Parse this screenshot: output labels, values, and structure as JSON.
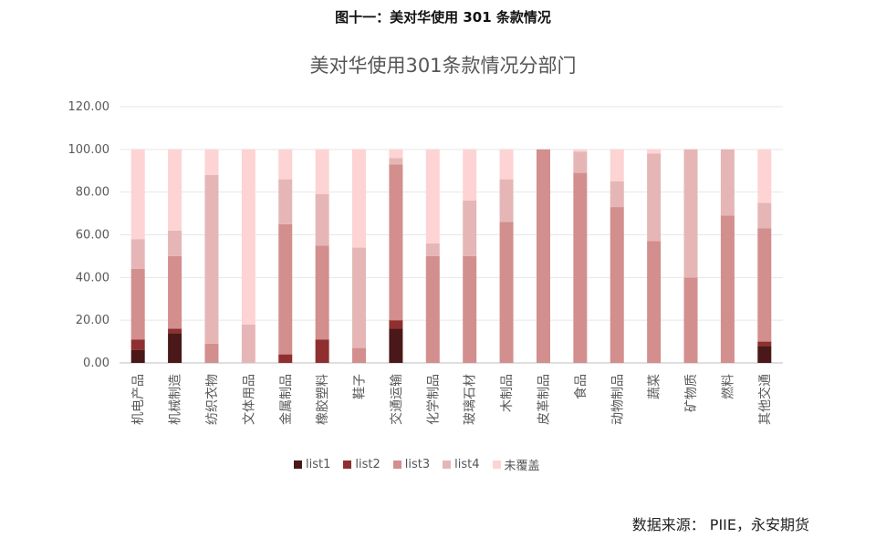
{
  "figure_caption": "图十一：美对华使用 301 条款情况",
  "source": "数据来源： PIIE，永安期货",
  "colors": {
    "list1": "#4a1818",
    "list2": "#8f2f2f",
    "list3": "#d38e8e",
    "list4": "#e6b6b6",
    "uncovered": "#fdd3d3",
    "grid": "#e6e6e6",
    "axis_text": "#595959"
  },
  "chart_data": {
    "type": "bar",
    "stacked": true,
    "title": "美对华使用301条款情况分部门",
    "xlabel": "",
    "ylabel": "",
    "ylim": [
      0,
      120
    ],
    "yticks": [
      "0.00",
      "20.00",
      "40.00",
      "60.00",
      "80.00",
      "100.00",
      "120.00"
    ],
    "grid": true,
    "legend_position": "bottom",
    "categories": [
      "机电产品",
      "机械制造",
      "纺织衣物",
      "文体用品",
      "金属制品",
      "橡胶塑料",
      "鞋子",
      "交通运输",
      "化学制品",
      "玻璃石材",
      "木制品",
      "皮革制品",
      "食品",
      "动物制品",
      "蔬菜",
      "矿物质",
      "燃料",
      "其他交通"
    ],
    "series": [
      {
        "name": "list1",
        "values": [
          6,
          14,
          0,
          0,
          0,
          0,
          0,
          16,
          0,
          0,
          0,
          0,
          0,
          0,
          0,
          0,
          0,
          8
        ]
      },
      {
        "name": "list2",
        "values": [
          5,
          2,
          0,
          0,
          4,
          11,
          0,
          4,
          0,
          0,
          0,
          0,
          0,
          0,
          0,
          0,
          0,
          2
        ]
      },
      {
        "name": "list3",
        "values": [
          33,
          34,
          9,
          0,
          61,
          44,
          7,
          73,
          50,
          50,
          66,
          100,
          89,
          73,
          57,
          40,
          69,
          53
        ]
      },
      {
        "name": "list4",
        "values": [
          14,
          12,
          79,
          18,
          21,
          24,
          47,
          3,
          6,
          26,
          20,
          0,
          10,
          12,
          41,
          60,
          31,
          12
        ]
      },
      {
        "name": "未覆盖",
        "values": [
          42,
          38,
          12,
          82,
          14,
          21,
          46,
          4,
          44,
          24,
          14,
          0,
          1,
          15,
          2,
          0,
          0,
          25
        ]
      }
    ]
  }
}
